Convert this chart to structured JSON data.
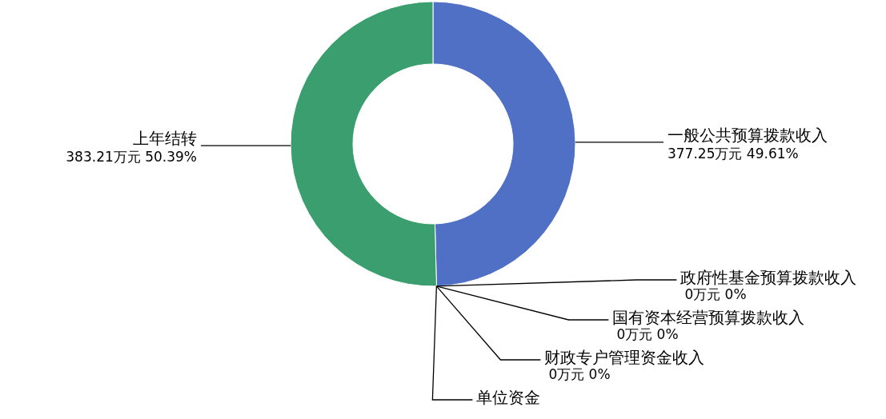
{
  "chart_data": {
    "type": "donut",
    "categories": [
      "一般公共预算拨款收入",
      "政府性基金预算拨款收入",
      "国有资本经营预算拨款收入",
      "财政专户管理资金收入",
      "单位资金",
      "上年结转"
    ],
    "values": [
      377.25,
      0,
      0,
      0,
      0,
      383.21
    ],
    "colors": [
      "#5070c5",
      "#e0a030",
      "#c04040",
      "#80a0d0",
      "#a070b0",
      "#3a9e6e"
    ],
    "value_labels": [
      "377.25万元 49.61%",
      "0万元 0%",
      "0万元 0%",
      "0万元 0%",
      null,
      "383.21万元 50.39%"
    ]
  }
}
